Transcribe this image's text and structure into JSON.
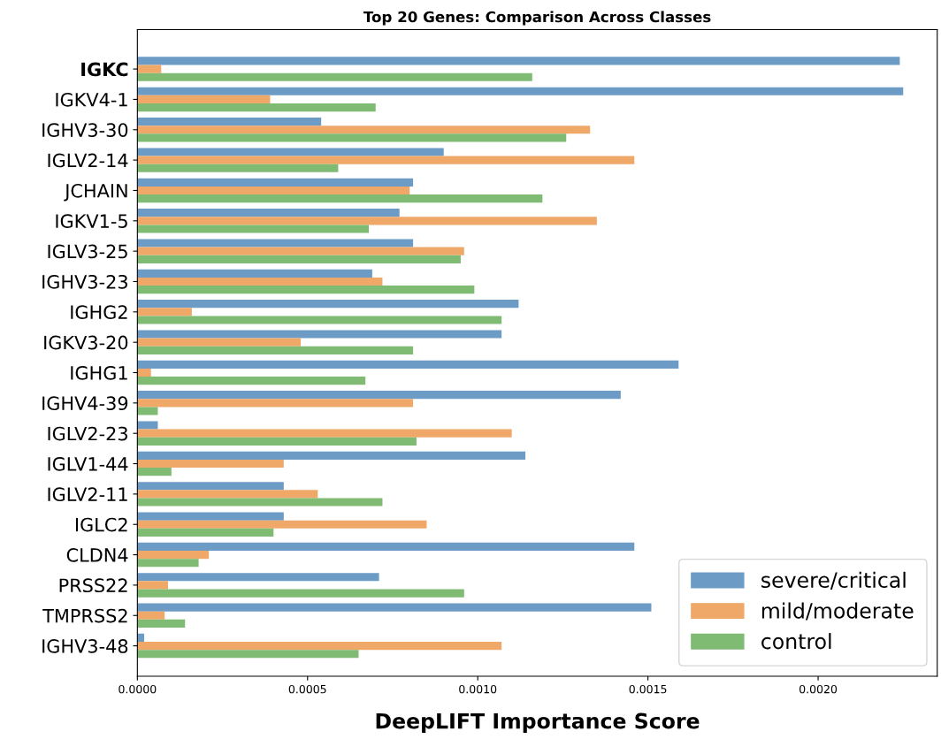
{
  "chart_data": {
    "type": "bar",
    "orientation": "horizontal",
    "title": "Top 20 Genes: Comparison Across Classes",
    "xlabel": "DeepLIFT Importance Score",
    "categories": [
      "IGKC",
      "IGKV4-1",
      "IGHV3-30",
      "IGLV2-14",
      "JCHAIN",
      "IGKV1-5",
      "IGLV3-25",
      "IGHV3-23",
      "IGHG2",
      "IGKV3-20",
      "IGHG1",
      "IGHV4-39",
      "IGLV2-23",
      "IGLV1-44",
      "IGLV2-11",
      "IGLC2",
      "CLDN4",
      "PRSS22",
      "TMPRSS2",
      "IGHV3-48"
    ],
    "series": [
      {
        "name": "severe/critical",
        "color": "#6c9bc6",
        "values": [
          0.00224,
          0.00225,
          0.00054,
          0.0009,
          0.00081,
          0.00077,
          0.00081,
          0.00069,
          0.00112,
          0.00107,
          0.00159,
          0.00142,
          6e-05,
          0.00114,
          0.00043,
          0.00043,
          0.00146,
          0.00071,
          0.00151,
          2e-05
        ]
      },
      {
        "name": "mild/moderate",
        "color": "#f0a868",
        "values": [
          7e-05,
          0.00039,
          0.00133,
          0.00146,
          0.0008,
          0.00135,
          0.00096,
          0.00072,
          0.00016,
          0.00048,
          4e-05,
          0.00081,
          0.0011,
          0.00043,
          0.00053,
          0.00085,
          0.00021,
          9e-05,
          8e-05,
          0.00107
        ]
      },
      {
        "name": "control",
        "color": "#7fbb73",
        "values": [
          0.00116,
          0.0007,
          0.00126,
          0.00059,
          0.00119,
          0.00068,
          0.00095,
          0.00099,
          0.00107,
          0.00081,
          0.00067,
          6e-05,
          0.00082,
          0.0001,
          0.00072,
          0.0004,
          0.00018,
          0.00096,
          0.00014,
          0.00065
        ]
      }
    ],
    "xlim": [
      0,
      0.00235
    ],
    "xticks": [
      {
        "value": 0,
        "label": "0.0000"
      },
      0.0005,
      {
        "value": 0.001,
        "label": "0.0010"
      },
      0.0015,
      {
        "value": 0.002,
        "label": "0.0020"
      }
    ],
    "grid": false,
    "legend": "bottom right"
  }
}
